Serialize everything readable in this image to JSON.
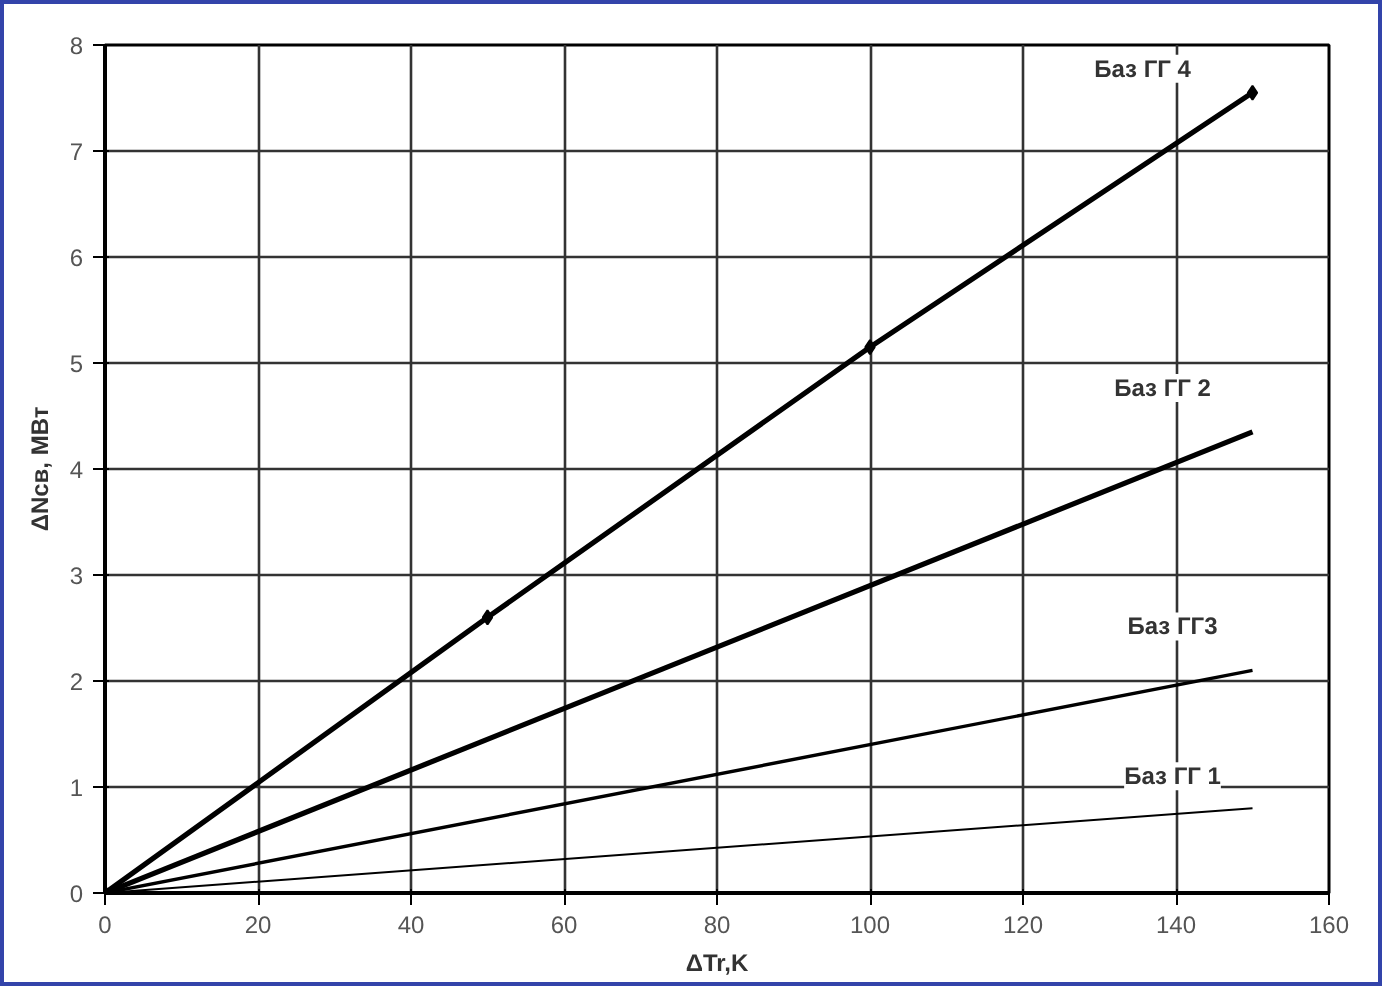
{
  "chart_data": {
    "type": "line",
    "xlabel": "ΔTr,K",
    "ylabel": "ΔNсв, МВт",
    "xlim": [
      0,
      160
    ],
    "xticks": [
      0,
      20,
      40,
      60,
      80,
      100,
      120,
      140,
      160
    ],
    "ylim": [
      0,
      8
    ],
    "yticks": [
      0,
      1,
      2,
      3,
      4,
      5,
      6,
      7,
      8
    ],
    "grid": true,
    "line_style": "solid",
    "series": [
      {
        "name": "Баз ГГ 4",
        "color": "#000000",
        "marker": "diamond",
        "x": [
          0,
          50,
          100,
          150
        ],
        "values": [
          0,
          2.6,
          5.15,
          7.55
        ]
      },
      {
        "name": "Баз ГГ 2",
        "color": "#000000",
        "marker": "none",
        "x": [
          0,
          150
        ],
        "values": [
          0,
          4.35
        ]
      },
      {
        "name": "Баз ГГ3",
        "color": "#000000",
        "marker": "none",
        "x": [
          0,
          150
        ],
        "values": [
          0,
          2.1
        ]
      },
      {
        "name": "Баз ГГ 1",
        "color": "#000000",
        "marker": "none",
        "x": [
          0,
          150
        ],
        "values": [
          0,
          0.8
        ]
      }
    ]
  }
}
